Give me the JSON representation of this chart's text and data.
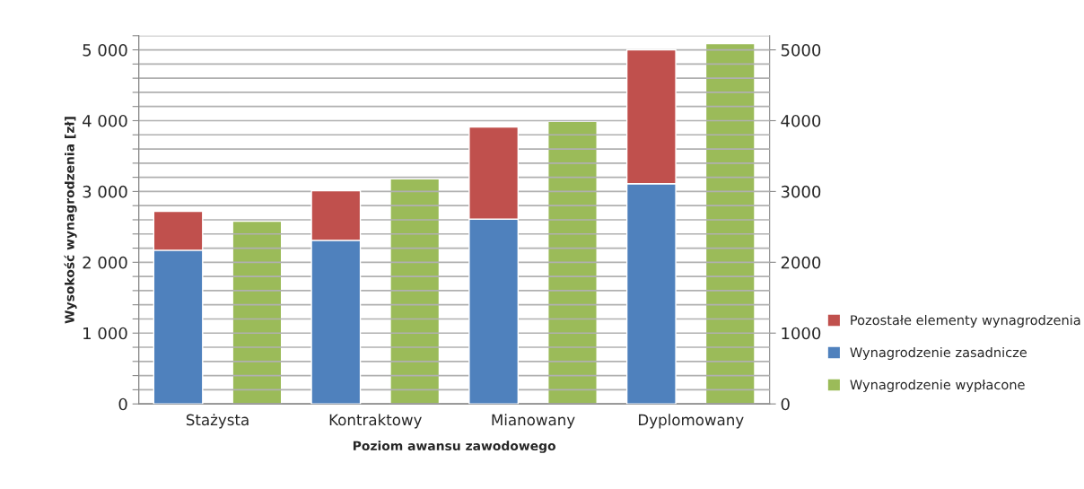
{
  "chart_data": {
    "type": "bar",
    "stacked": true,
    "xlabel": "Poziom awansu zawodowego",
    "ylabel": "Wysokość wynagrodzenia [zł]",
    "categories": [
      "Stażysta",
      "Kontraktowy",
      "Mianowany",
      "Dyplomowany"
    ],
    "series": [
      {
        "name": "Wynagrodzenie zasadnicze",
        "color": "#4f81bd",
        "values": [
          2170,
          2310,
          2610,
          3110
        ]
      },
      {
        "name": "Pozostałe elementy wynagrodzenia",
        "color": "#c0504d",
        "values": [
          550,
          700,
          1300,
          1890
        ]
      },
      {
        "name": "Wynagrodzenie wypłacone",
        "color": "#9bbb59",
        "values": [
          2580,
          3180,
          3990,
          5090
        ],
        "axis": "y2"
      }
    ],
    "ylim": [
      0,
      5200
    ],
    "yticks": [
      0,
      {
        "value": 200,
        "label": null
      },
      {
        "value": 400,
        "label": null
      },
      {
        "value": 600,
        "label": null
      },
      {
        "value": 800,
        "label": null
      },
      {
        "value": 1000,
        "label": "1 000"
      },
      {
        "value": 1200,
        "label": null
      },
      {
        "value": 1400,
        "label": null
      },
      {
        "value": 1600,
        "label": null
      },
      {
        "value": 1800,
        "label": null
      },
      {
        "value": 2000,
        "label": "2 000"
      },
      {
        "value": 2200,
        "label": null
      },
      {
        "value": 2400,
        "label": null
      },
      {
        "value": 2600,
        "label": null
      },
      {
        "value": 2800,
        "label": null
      },
      {
        "value": 3000,
        "label": "3 000"
      },
      {
        "value": 3200,
        "label": null
      },
      {
        "value": 3400,
        "label": null
      },
      {
        "value": 3600,
        "label": null
      },
      {
        "value": 3800,
        "label": null
      },
      {
        "value": 4000,
        "label": "4 000"
      },
      {
        "value": 4200,
        "label": null
      },
      {
        "value": 4400,
        "label": null
      },
      {
        "value": 4600,
        "label": null
      },
      {
        "value": 4800,
        "label": null
      },
      {
        "value": 5000,
        "label": "5 000"
      },
      {
        "value": 5200,
        "label": null
      }
    ],
    "y2lim": [
      0,
      5200
    ],
    "y2ticks": [
      0,
      1000,
      2000,
      3000,
      4000,
      5000
    ],
    "grid": "y",
    "legend": "right"
  }
}
